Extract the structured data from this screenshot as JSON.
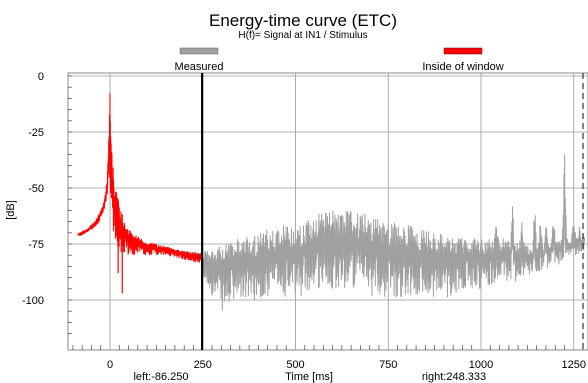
{
  "chart_data": {
    "type": "line",
    "title": "Energy-time curve (ETC)",
    "subtitle": "H(f)= Signal at IN1 / Stimulus",
    "xlabel": "Time [ms]",
    "ylabel": "[dB]",
    "xlim": [
      -100,
      1280
    ],
    "ylim": [
      -120,
      3
    ],
    "x_ticks": [
      0,
      250,
      500,
      750,
      1000,
      1250
    ],
    "y_ticks": [
      0,
      -25,
      -50,
      -75,
      -100
    ],
    "grid": true,
    "legend_position": "top",
    "window_left_label": "left:-86.250",
    "window_right_label": "right:248.333",
    "window_right_marker": 248.333,
    "end_marker": 1275,
    "series": [
      {
        "name": "Inside of window",
        "color": "#ff0000",
        "style": "noisy-band",
        "points": [
          {
            "x": -86,
            "low": -72,
            "high": -70
          },
          {
            "x": -60,
            "low": -70,
            "high": -68
          },
          {
            "x": -40,
            "low": -68,
            "high": -64
          },
          {
            "x": -25,
            "low": -64,
            "high": -60
          },
          {
            "x": -15,
            "low": -60,
            "high": -55
          },
          {
            "x": -8,
            "low": -55,
            "high": -45
          },
          {
            "x": -3,
            "low": -45,
            "high": -25
          },
          {
            "x": 0,
            "low": -60,
            "high": 0
          },
          {
            "x": 3,
            "low": -65,
            "high": -25
          },
          {
            "x": 8,
            "low": -70,
            "high": -40
          },
          {
            "x": 15,
            "low": -75,
            "high": -48
          },
          {
            "x": 25,
            "low": -80,
            "high": -58
          },
          {
            "x": 40,
            "low": -80,
            "high": -65
          },
          {
            "x": 60,
            "low": -80,
            "high": -70
          },
          {
            "x": 100,
            "low": -80,
            "high": -74
          },
          {
            "x": 150,
            "low": -80,
            "high": -76
          },
          {
            "x": 200,
            "low": -82,
            "high": -78
          },
          {
            "x": 248,
            "low": -84,
            "high": -79
          }
        ],
        "spikes": [
          {
            "x": 33,
            "low": -97
          },
          {
            "x": 22,
            "low": -88
          }
        ]
      },
      {
        "name": "Measured",
        "color": "#a0a0a0",
        "style": "noisy-band",
        "points": [
          {
            "x": 248,
            "low": -90,
            "high": -78
          },
          {
            "x": 300,
            "low": -105,
            "high": -75
          },
          {
            "x": 350,
            "low": -100,
            "high": -72
          },
          {
            "x": 400,
            "low": -100,
            "high": -70
          },
          {
            "x": 450,
            "low": -98,
            "high": -67
          },
          {
            "x": 500,
            "low": -100,
            "high": -66
          },
          {
            "x": 550,
            "low": -95,
            "high": -62
          },
          {
            "x": 600,
            "low": -95,
            "high": -60
          },
          {
            "x": 650,
            "low": -95,
            "high": -60
          },
          {
            "x": 700,
            "low": -98,
            "high": -62
          },
          {
            "x": 750,
            "low": -100,
            "high": -64
          },
          {
            "x": 800,
            "low": -98,
            "high": -66
          },
          {
            "x": 850,
            "low": -98,
            "high": -68
          },
          {
            "x": 900,
            "low": -100,
            "high": -70
          },
          {
            "x": 950,
            "low": -95,
            "high": -72
          },
          {
            "x": 1000,
            "low": -95,
            "high": -72
          },
          {
            "x": 1050,
            "low": -92,
            "high": -72
          },
          {
            "x": 1100,
            "low": -92,
            "high": -74
          },
          {
            "x": 1150,
            "low": -88,
            "high": -76
          },
          {
            "x": 1200,
            "low": -85,
            "high": -74
          },
          {
            "x": 1280,
            "low": -78,
            "high": -70
          }
        ],
        "peaks": [
          {
            "x": 1040,
            "high": -62
          },
          {
            "x": 1085,
            "high": -58
          },
          {
            "x": 1110,
            "high": -62
          },
          {
            "x": 1145,
            "high": -55
          },
          {
            "x": 1160,
            "high": -63
          },
          {
            "x": 1175,
            "high": -62
          },
          {
            "x": 1195,
            "high": -60
          },
          {
            "x": 1225,
            "high": -30
          },
          {
            "x": 1250,
            "high": -62
          },
          {
            "x": 1265,
            "high": -67
          }
        ]
      }
    ]
  }
}
